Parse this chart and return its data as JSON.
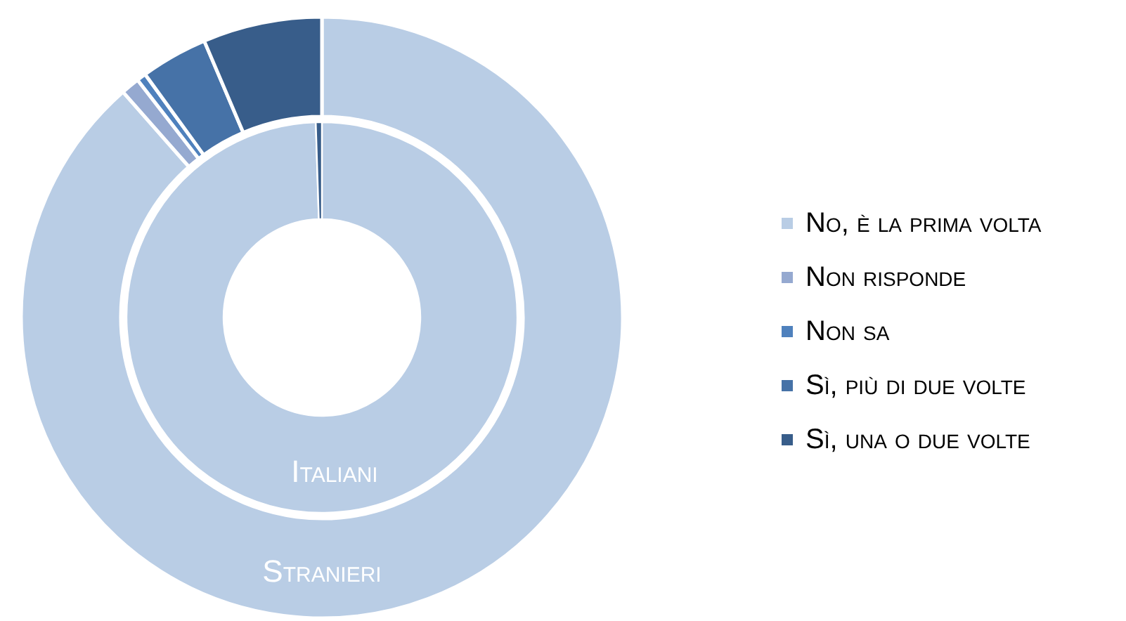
{
  "chart_data": {
    "type": "donut",
    "categories": [
      "No, è la prima volta",
      "Non risponde",
      "Non sa",
      "Sì, più di due volte",
      "Sì, una o due volte"
    ],
    "colors": [
      "#b9cde5",
      "#95a9d0",
      "#4f81bd",
      "#4672a7",
      "#385d8a"
    ],
    "series": [
      {
        "name": "Italiani",
        "values": [
          99.5,
          0,
          0,
          0,
          0.5
        ]
      },
      {
        "name": "Stranieri",
        "values": [
          88.5,
          1,
          0.5,
          3.6,
          6.4
        ]
      }
    ],
    "legend": "right"
  }
}
